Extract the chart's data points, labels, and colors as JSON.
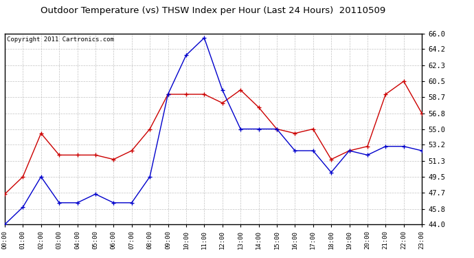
{
  "title": "Outdoor Temperature (vs) THSW Index per Hour (Last 24 Hours)  20110509",
  "copyright": "Copyright 2011 Cartronics.com",
  "x_labels": [
    "00:00",
    "01:00",
    "02:00",
    "03:00",
    "04:00",
    "05:00",
    "06:00",
    "07:00",
    "08:00",
    "09:00",
    "10:00",
    "11:00",
    "12:00",
    "13:00",
    "14:00",
    "15:00",
    "16:00",
    "17:00",
    "18:00",
    "19:00",
    "20:00",
    "21:00",
    "22:00",
    "23:00"
  ],
  "temp_red": [
    47.5,
    49.5,
    54.5,
    52.0,
    52.0,
    52.0,
    51.5,
    52.5,
    55.0,
    59.0,
    59.0,
    59.0,
    58.0,
    59.5,
    57.5,
    55.0,
    54.5,
    55.0,
    51.5,
    52.5,
    53.0,
    59.0,
    60.5,
    56.8
  ],
  "thsw_blue": [
    44.0,
    46.0,
    49.5,
    46.5,
    46.5,
    47.5,
    46.5,
    46.5,
    49.5,
    59.0,
    63.5,
    65.5,
    59.5,
    55.0,
    55.0,
    55.0,
    52.5,
    52.5,
    50.0,
    52.5,
    52.0,
    53.0,
    53.0,
    52.5
  ],
  "ylim_min": 44.0,
  "ylim_max": 66.0,
  "yticks": [
    44.0,
    45.8,
    47.7,
    49.5,
    51.3,
    53.2,
    55.0,
    56.8,
    58.7,
    60.5,
    62.3,
    64.2,
    66.0
  ],
  "bg_color": "#ffffff",
  "plot_bg_color": "#ffffff",
  "grid_color": "#bbbbbb",
  "red_color": "#cc0000",
  "blue_color": "#0000cc",
  "title_fontsize": 9.5,
  "copyright_fontsize": 6.5
}
